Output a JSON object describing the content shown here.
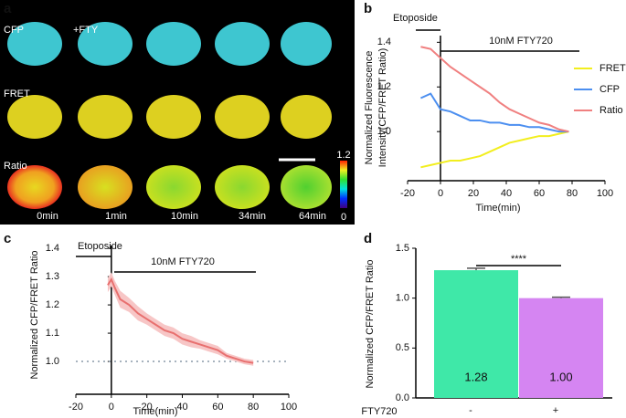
{
  "panel_labels": [
    "a",
    "b",
    "c",
    "d"
  ],
  "image_panel": {
    "row_labels": [
      "CFP",
      "FRET",
      "Ratio"
    ],
    "treatment_label": "+FTY",
    "time_labels": [
      "0min",
      "1min",
      "10min",
      "34min",
      "64min"
    ],
    "colorbar": {
      "max": 1.2,
      "min": 0
    }
  },
  "chart_data": [
    {
      "type": "line",
      "y_label": [
        "Normalized Fluorescence",
        "Intensity(CFP/FRET Ratio)"
      ],
      "x_label": "Time(min)",
      "annotations": [
        "Etoposide",
        "10nM FTY720"
      ],
      "x": [
        -12,
        -6,
        0,
        6,
        12,
        18,
        24,
        30,
        36,
        42,
        48,
        54,
        60,
        66,
        72,
        78
      ],
      "series": [
        {
          "name": "FRET",
          "color": "#f2ee1e",
          "values": [
            0.84,
            0.85,
            0.86,
            0.87,
            0.87,
            0.88,
            0.89,
            0.91,
            0.93,
            0.95,
            0.96,
            0.97,
            0.98,
            0.98,
            0.99,
            1.0
          ]
        },
        {
          "name": "CFP",
          "color": "#4c8ff0",
          "values": [
            1.15,
            1.17,
            1.1,
            1.09,
            1.07,
            1.05,
            1.05,
            1.04,
            1.04,
            1.03,
            1.03,
            1.02,
            1.02,
            1.01,
            1.0,
            1.0
          ]
        },
        {
          "name": "Ratio",
          "color": "#f08080",
          "values": [
            1.38,
            1.37,
            1.33,
            1.29,
            1.26,
            1.23,
            1.2,
            1.17,
            1.13,
            1.1,
            1.08,
            1.06,
            1.04,
            1.03,
            1.01,
            1.0
          ]
        }
      ],
      "xlim": [
        -20,
        100
      ],
      "xticks": [
        -20,
        0,
        20,
        40,
        60,
        80,
        100
      ],
      "ylim": [
        0.78,
        1.43
      ],
      "yticks": [
        {
          "value": 1.0,
          "label": "1.0"
        },
        {
          "value": 1.2,
          "label": "1.2"
        },
        {
          "value": 1.4,
          "label": "1.4"
        }
      ],
      "legend": "right"
    },
    {
      "type": "line",
      "y_label": [
        "Normalized CFP/FRET Ratio"
      ],
      "x_label": "Time(min)",
      "annotations": [
        "Etoposide",
        "10nM FTY720"
      ],
      "x": [
        -2,
        0,
        2,
        5,
        10,
        15,
        20,
        25,
        30,
        35,
        40,
        45,
        50,
        55,
        60,
        65,
        70,
        75,
        80
      ],
      "series": [
        {
          "color": "#e8706f",
          "band_color": "#f7c6c6",
          "values": [
            1.27,
            1.29,
            1.26,
            1.22,
            1.2,
            1.17,
            1.15,
            1.13,
            1.11,
            1.1,
            1.08,
            1.07,
            1.06,
            1.05,
            1.04,
            1.02,
            1.01,
            1.0,
            0.995
          ],
          "errors": [
            0.025,
            0.025,
            0.025,
            0.03,
            0.025,
            0.025,
            0.02,
            0.02,
            0.02,
            0.02,
            0.02,
            0.02,
            0.015,
            0.015,
            0.015,
            0.01,
            0.01,
            0.01,
            0.01
          ]
        }
      ],
      "reference_line": 1,
      "reference_color": "#8a9aa8",
      "xlim": [
        -20,
        100
      ],
      "xticks": [
        -20,
        0,
        20,
        40,
        60,
        80,
        100
      ],
      "ylim": [
        0.884,
        1.41
      ],
      "yticks": [
        {
          "value": 1.0,
          "label": "1.0"
        },
        1.1,
        1.2,
        1.3,
        1.4
      ]
    },
    {
      "type": "bar",
      "y_label": [
        "Normalized CFP/FRET Ratio"
      ],
      "x_label": "FTY720",
      "categories": [
        "-",
        "+"
      ],
      "values": [
        1.28,
        1.0
      ],
      "value_labels": [
        "1.28",
        "1.00"
      ],
      "errors": [
        0.02,
        0.01
      ],
      "colors": [
        "#3fe8a8",
        "#d585f2"
      ],
      "significance": "****",
      "ylim": [
        0,
        1.5
      ],
      "yticks": [
        {
          "value": 0,
          "label": "0.0"
        },
        0.5,
        {
          "value": 1.0,
          "label": "1.0"
        },
        1.5
      ]
    }
  ]
}
